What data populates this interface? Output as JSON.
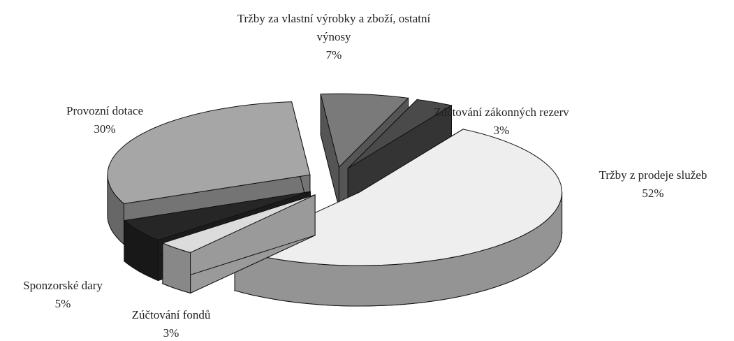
{
  "chart_data": {
    "type": "pie",
    "categories": [
      "Zúčtování zákonných rezerv",
      "Tržby z prodeje služeb",
      "Zúčtování fondů",
      "Sponzorské dary",
      "Provozní dotace",
      "Tržby za vlastní výrobky a zboží, ostatní výnosy"
    ],
    "values": [
      3,
      52,
      3,
      5,
      30,
      7
    ],
    "value_labels": [
      "3%",
      "52%",
      "3%",
      "5%",
      "30%",
      "7%"
    ],
    "colors": [
      "#4a4a4a",
      "#eeeeee",
      "#dcdcdc",
      "#262626",
      "#a6a6a6",
      "#7a7a7a"
    ]
  }
}
